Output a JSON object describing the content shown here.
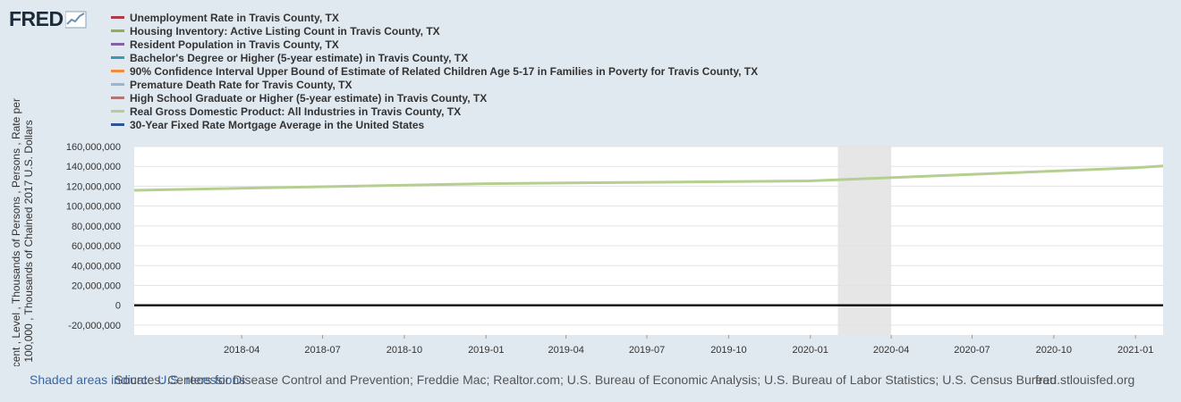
{
  "logo": {
    "text": "FRED"
  },
  "footer": {
    "shaded_note": "Shaded areas indicate U.S. recessions",
    "sources": "Sources: Centers for Disease Control and Prevention; Freddie Mac; Realtor.com; U.S. Bureau of Economic Analysis; U.S. Bureau of Labor Statistics; U.S. Census Bureau",
    "site": "fred.stlouisfed.org"
  },
  "chart_data": {
    "type": "line",
    "title": "",
    "xlabel": "",
    "ylabel_lines": [
      "Percent , Level , Thousands of Persons , Persons , Rate per",
      "100,000 , Thousands of Chained 2017 U.S. Dollars"
    ],
    "ylim": [
      -30000000,
      160000000
    ],
    "yticks": [
      -20000000,
      0,
      20000000,
      40000000,
      60000000,
      80000000,
      100000000,
      120000000,
      140000000,
      160000000
    ],
    "ytick_labels": [
      "-20,000,000",
      "0",
      "20,000,000",
      "40,000,000",
      "60,000,000",
      "80,000,000",
      "100,000,000",
      "120,000,000",
      "140,000,000",
      "160,000,000"
    ],
    "xlim": [
      "2017-12-01",
      "2021-02-01"
    ],
    "xticks": [
      "2018-04-01",
      "2018-07-01",
      "2018-10-01",
      "2019-01-01",
      "2019-04-01",
      "2019-07-01",
      "2019-10-01",
      "2020-01-01",
      "2020-04-01",
      "2020-07-01",
      "2020-10-01",
      "2021-01-01"
    ],
    "xtick_labels": [
      "2018-04",
      "2018-07",
      "2018-10",
      "2019-01",
      "2019-04",
      "2019-07",
      "2019-10",
      "2020-01",
      "2020-04",
      "2020-07",
      "2020-10",
      "2021-01"
    ],
    "recession": [
      "2020-02-01",
      "2020-04-01"
    ],
    "grid": true,
    "legend_position": "top-left",
    "series": [
      {
        "name": "Unemployment Rate in Travis County, TX",
        "color": "#b03a48",
        "x": [
          "2017-12-01",
          "2021-02-01"
        ],
        "values": [
          0,
          0
        ]
      },
      {
        "name": "Housing Inventory: Active Listing Count in Travis County, TX",
        "color": "#8fb04f",
        "x": [
          "2017-12-01",
          "2021-02-01"
        ],
        "values": [
          0,
          0
        ]
      },
      {
        "name": "Resident Population in Travis County, TX",
        "color": "#8064a2",
        "x": [
          "2017-12-01",
          "2021-02-01"
        ],
        "values": [
          0,
          0
        ]
      },
      {
        "name": "Bachelor's Degree or Higher (5-year estimate) in Travis County, TX",
        "color": "#3a99b5",
        "x": [
          "2017-12-01",
          "2021-02-01"
        ],
        "values": [
          0,
          0
        ]
      },
      {
        "name": "90% Confidence Interval Upper Bound of Estimate of Related Children Age 5-17 in Families in Poverty for Travis County, TX",
        "color": "#f08c3a",
        "x": [
          "2017-12-01",
          "2021-02-01"
        ],
        "values": [
          0,
          0
        ]
      },
      {
        "name": "Premature Death Rate for Travis County, TX",
        "color": "#97b4d9",
        "x": [
          "2017-12-01",
          "2021-02-01"
        ],
        "values": [
          0,
          0
        ]
      },
      {
        "name": "High School Graduate or Higher (5-year estimate) in Travis County, TX",
        "color": "#b0777a",
        "x": [
          "2017-12-01",
          "2021-02-01"
        ],
        "values": [
          0,
          0
        ]
      },
      {
        "name": "Real Gross Domestic Product: All Industries in Travis County, TX",
        "color": "#b5cf90",
        "x": [
          "2017-12-01",
          "2018-12-31",
          "2019-12-31",
          "2020-12-31",
          "2021-02-01"
        ],
        "values": [
          115900000,
          122500000,
          125300000,
          138500000,
          140500000
        ]
      },
      {
        "name": "30-Year Fixed Rate Mortgage Average in the United States",
        "color": "#2f5597",
        "x": [
          "2017-12-01",
          "2021-02-01"
        ],
        "values": [
          0,
          0
        ]
      }
    ]
  }
}
